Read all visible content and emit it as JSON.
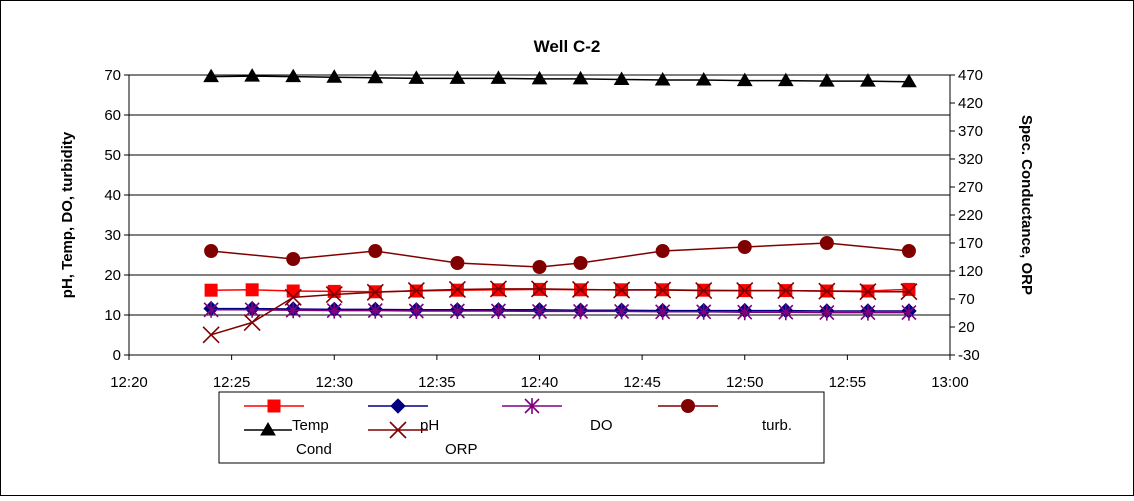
{
  "chart_data": {
    "type": "line",
    "title": "Well C-2",
    "ylabel": "pH, Temp, DO, turbidity",
    "y2label": "Spec. Conductance, ORP",
    "xlabel": "",
    "xlim": [
      "12:20",
      "13:00"
    ],
    "ylim": [
      0,
      70
    ],
    "y2lim": [
      -30,
      470
    ],
    "x_ticks": [
      "12:20",
      "12:25",
      "12:30",
      "12:35",
      "12:40",
      "12:45",
      "12:50",
      "12:55",
      "13:00"
    ],
    "y_ticks": [
      "0",
      "10",
      "20",
      "30",
      "40",
      "50",
      "60",
      "70"
    ],
    "y2_ticks": [
      "-30",
      "20",
      "70",
      "120",
      "170",
      "220",
      "270",
      "320",
      "370",
      "420",
      "470"
    ],
    "grid": "horizontal",
    "legend_position": "bottom",
    "series": [
      {
        "name": "Temp",
        "axis": "left",
        "color": "#ff0000",
        "marker": "square",
        "x": [
          "12:24",
          "12:26",
          "12:28",
          "12:30",
          "12:32",
          "12:34",
          "12:36",
          "12:38",
          "12:40",
          "12:42",
          "12:44",
          "12:46",
          "12:48",
          "12:50",
          "12:52",
          "12:54",
          "12:56",
          "12:58"
        ],
        "values": [
          16.2,
          16.3,
          16.0,
          15.9,
          15.8,
          16.0,
          16.2,
          16.3,
          16.4,
          16.3,
          16.3,
          16.3,
          16.2,
          16.1,
          16.1,
          16.0,
          16.0,
          16.4
        ]
      },
      {
        "name": "pH",
        "axis": "left",
        "color": "#000080",
        "marker": "diamond",
        "x": [
          "12:24",
          "12:26",
          "12:28",
          "12:30",
          "12:32",
          "12:34",
          "12:36",
          "12:38",
          "12:40",
          "12:42",
          "12:44",
          "12:46",
          "12:48",
          "12:50",
          "12:52",
          "12:54",
          "12:56",
          "12:58"
        ],
        "values": [
          11.6,
          11.6,
          11.5,
          11.4,
          11.4,
          11.3,
          11.3,
          11.3,
          11.3,
          11.2,
          11.2,
          11.1,
          11.1,
          11.1,
          11.1,
          11.0,
          11.0,
          11.0
        ]
      },
      {
        "name": "DO",
        "axis": "left",
        "color": "#800080",
        "marker": "asterisk",
        "x": [
          "12:24",
          "12:26",
          "12:28",
          "12:30",
          "12:32",
          "12:34",
          "12:36",
          "12:38",
          "12:40",
          "12:42",
          "12:44",
          "12:46",
          "12:48",
          "12:50",
          "12:52",
          "12:54",
          "12:56",
          "12:58"
        ],
        "values": [
          11.3,
          11.3,
          11.2,
          11.1,
          11.1,
          11.0,
          11.0,
          11.0,
          10.9,
          10.9,
          10.9,
          10.8,
          10.8,
          10.7,
          10.7,
          10.6,
          10.6,
          10.6
        ]
      },
      {
        "name": "turb.",
        "axis": "left",
        "color": "#800000",
        "marker": "circle",
        "x": [
          "12:24",
          "12:28",
          "12:32",
          "12:36",
          "12:40",
          "12:42",
          "12:46",
          "12:50",
          "12:54",
          "12:58"
        ],
        "values": [
          26,
          24,
          26,
          23,
          22,
          23,
          26,
          27,
          28,
          26
        ]
      },
      {
        "name": "Cond",
        "axis": "right",
        "color": "#000000",
        "marker": "triangle",
        "x": [
          "12:24",
          "12:26",
          "12:28",
          "12:30",
          "12:32",
          "12:34",
          "12:36",
          "12:38",
          "12:40",
          "12:42",
          "12:44",
          "12:46",
          "12:48",
          "12:50",
          "12:52",
          "12:54",
          "12:56",
          "12:58"
        ],
        "values": [
          467,
          468,
          467,
          466,
          465,
          464,
          464,
          464,
          463,
          463,
          462,
          461,
          461,
          460,
          460,
          459,
          459,
          458
        ]
      },
      {
        "name": "ORP",
        "axis": "right",
        "color": "#800000",
        "marker": "x",
        "x": [
          "12:24",
          "12:26",
          "12:28",
          "12:30",
          "12:32",
          "12:34",
          "12:36",
          "12:38",
          "12:40",
          "12:42",
          "12:44",
          "12:46",
          "12:48",
          "12:50",
          "12:52",
          "12:54",
          "12:56",
          "12:58"
        ],
        "values": [
          6,
          28,
          73,
          78,
          82,
          85,
          87,
          88,
          88,
          87,
          86,
          86,
          85,
          85,
          85,
          84,
          83,
          83
        ]
      }
    ]
  }
}
